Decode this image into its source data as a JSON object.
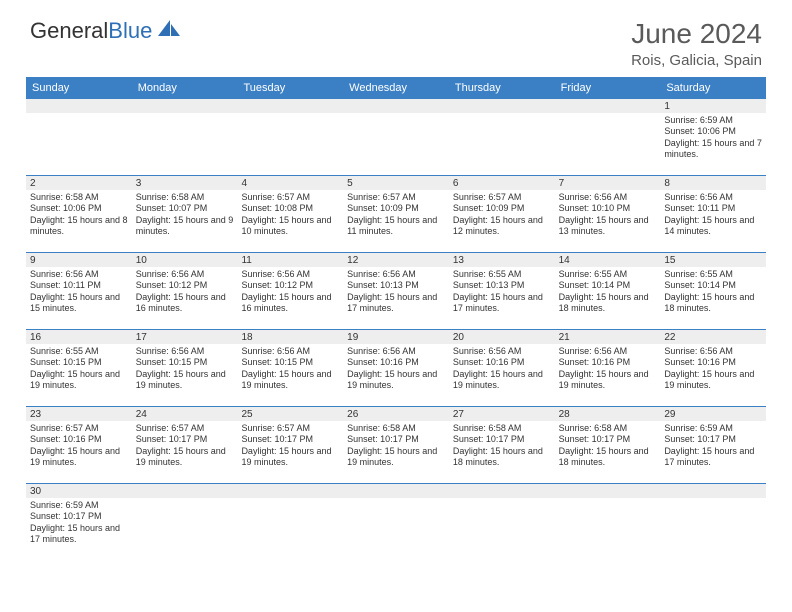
{
  "logo": {
    "text1": "General",
    "text2": "Blue"
  },
  "title": "June 2024",
  "location": "Rois, Galicia, Spain",
  "colors": {
    "header_bg": "#3b7fc4",
    "header_text": "#ffffff",
    "daynum_bg": "#eeeeee",
    "border": "#3b7fc4",
    "text": "#333333",
    "title_text": "#5a5a5a",
    "logo_blue": "#2e6fb5"
  },
  "day_headers": [
    "Sunday",
    "Monday",
    "Tuesday",
    "Wednesday",
    "Thursday",
    "Friday",
    "Saturday"
  ],
  "weeks": [
    {
      "nums": [
        "",
        "",
        "",
        "",
        "",
        "",
        "1"
      ],
      "cells": [
        null,
        null,
        null,
        null,
        null,
        null,
        {
          "sunrise": "Sunrise: 6:59 AM",
          "sunset": "Sunset: 10:06 PM",
          "daylight": "Daylight: 15 hours and 7 minutes."
        }
      ]
    },
    {
      "nums": [
        "2",
        "3",
        "4",
        "5",
        "6",
        "7",
        "8"
      ],
      "cells": [
        {
          "sunrise": "Sunrise: 6:58 AM",
          "sunset": "Sunset: 10:06 PM",
          "daylight": "Daylight: 15 hours and 8 minutes."
        },
        {
          "sunrise": "Sunrise: 6:58 AM",
          "sunset": "Sunset: 10:07 PM",
          "daylight": "Daylight: 15 hours and 9 minutes."
        },
        {
          "sunrise": "Sunrise: 6:57 AM",
          "sunset": "Sunset: 10:08 PM",
          "daylight": "Daylight: 15 hours and 10 minutes."
        },
        {
          "sunrise": "Sunrise: 6:57 AM",
          "sunset": "Sunset: 10:09 PM",
          "daylight": "Daylight: 15 hours and 11 minutes."
        },
        {
          "sunrise": "Sunrise: 6:57 AM",
          "sunset": "Sunset: 10:09 PM",
          "daylight": "Daylight: 15 hours and 12 minutes."
        },
        {
          "sunrise": "Sunrise: 6:56 AM",
          "sunset": "Sunset: 10:10 PM",
          "daylight": "Daylight: 15 hours and 13 minutes."
        },
        {
          "sunrise": "Sunrise: 6:56 AM",
          "sunset": "Sunset: 10:11 PM",
          "daylight": "Daylight: 15 hours and 14 minutes."
        }
      ]
    },
    {
      "nums": [
        "9",
        "10",
        "11",
        "12",
        "13",
        "14",
        "15"
      ],
      "cells": [
        {
          "sunrise": "Sunrise: 6:56 AM",
          "sunset": "Sunset: 10:11 PM",
          "daylight": "Daylight: 15 hours and 15 minutes."
        },
        {
          "sunrise": "Sunrise: 6:56 AM",
          "sunset": "Sunset: 10:12 PM",
          "daylight": "Daylight: 15 hours and 16 minutes."
        },
        {
          "sunrise": "Sunrise: 6:56 AM",
          "sunset": "Sunset: 10:12 PM",
          "daylight": "Daylight: 15 hours and 16 minutes."
        },
        {
          "sunrise": "Sunrise: 6:56 AM",
          "sunset": "Sunset: 10:13 PM",
          "daylight": "Daylight: 15 hours and 17 minutes."
        },
        {
          "sunrise": "Sunrise: 6:55 AM",
          "sunset": "Sunset: 10:13 PM",
          "daylight": "Daylight: 15 hours and 17 minutes."
        },
        {
          "sunrise": "Sunrise: 6:55 AM",
          "sunset": "Sunset: 10:14 PM",
          "daylight": "Daylight: 15 hours and 18 minutes."
        },
        {
          "sunrise": "Sunrise: 6:55 AM",
          "sunset": "Sunset: 10:14 PM",
          "daylight": "Daylight: 15 hours and 18 minutes."
        }
      ]
    },
    {
      "nums": [
        "16",
        "17",
        "18",
        "19",
        "20",
        "21",
        "22"
      ],
      "cells": [
        {
          "sunrise": "Sunrise: 6:55 AM",
          "sunset": "Sunset: 10:15 PM",
          "daylight": "Daylight: 15 hours and 19 minutes."
        },
        {
          "sunrise": "Sunrise: 6:56 AM",
          "sunset": "Sunset: 10:15 PM",
          "daylight": "Daylight: 15 hours and 19 minutes."
        },
        {
          "sunrise": "Sunrise: 6:56 AM",
          "sunset": "Sunset: 10:15 PM",
          "daylight": "Daylight: 15 hours and 19 minutes."
        },
        {
          "sunrise": "Sunrise: 6:56 AM",
          "sunset": "Sunset: 10:16 PM",
          "daylight": "Daylight: 15 hours and 19 minutes."
        },
        {
          "sunrise": "Sunrise: 6:56 AM",
          "sunset": "Sunset: 10:16 PM",
          "daylight": "Daylight: 15 hours and 19 minutes."
        },
        {
          "sunrise": "Sunrise: 6:56 AM",
          "sunset": "Sunset: 10:16 PM",
          "daylight": "Daylight: 15 hours and 19 minutes."
        },
        {
          "sunrise": "Sunrise: 6:56 AM",
          "sunset": "Sunset: 10:16 PM",
          "daylight": "Daylight: 15 hours and 19 minutes."
        }
      ]
    },
    {
      "nums": [
        "23",
        "24",
        "25",
        "26",
        "27",
        "28",
        "29"
      ],
      "cells": [
        {
          "sunrise": "Sunrise: 6:57 AM",
          "sunset": "Sunset: 10:16 PM",
          "daylight": "Daylight: 15 hours and 19 minutes."
        },
        {
          "sunrise": "Sunrise: 6:57 AM",
          "sunset": "Sunset: 10:17 PM",
          "daylight": "Daylight: 15 hours and 19 minutes."
        },
        {
          "sunrise": "Sunrise: 6:57 AM",
          "sunset": "Sunset: 10:17 PM",
          "daylight": "Daylight: 15 hours and 19 minutes."
        },
        {
          "sunrise": "Sunrise: 6:58 AM",
          "sunset": "Sunset: 10:17 PM",
          "daylight": "Daylight: 15 hours and 19 minutes."
        },
        {
          "sunrise": "Sunrise: 6:58 AM",
          "sunset": "Sunset: 10:17 PM",
          "daylight": "Daylight: 15 hours and 18 minutes."
        },
        {
          "sunrise": "Sunrise: 6:58 AM",
          "sunset": "Sunset: 10:17 PM",
          "daylight": "Daylight: 15 hours and 18 minutes."
        },
        {
          "sunrise": "Sunrise: 6:59 AM",
          "sunset": "Sunset: 10:17 PM",
          "daylight": "Daylight: 15 hours and 17 minutes."
        }
      ]
    },
    {
      "nums": [
        "30",
        "",
        "",
        "",
        "",
        "",
        ""
      ],
      "cells": [
        {
          "sunrise": "Sunrise: 6:59 AM",
          "sunset": "Sunset: 10:17 PM",
          "daylight": "Daylight: 15 hours and 17 minutes."
        },
        null,
        null,
        null,
        null,
        null,
        null
      ]
    }
  ]
}
